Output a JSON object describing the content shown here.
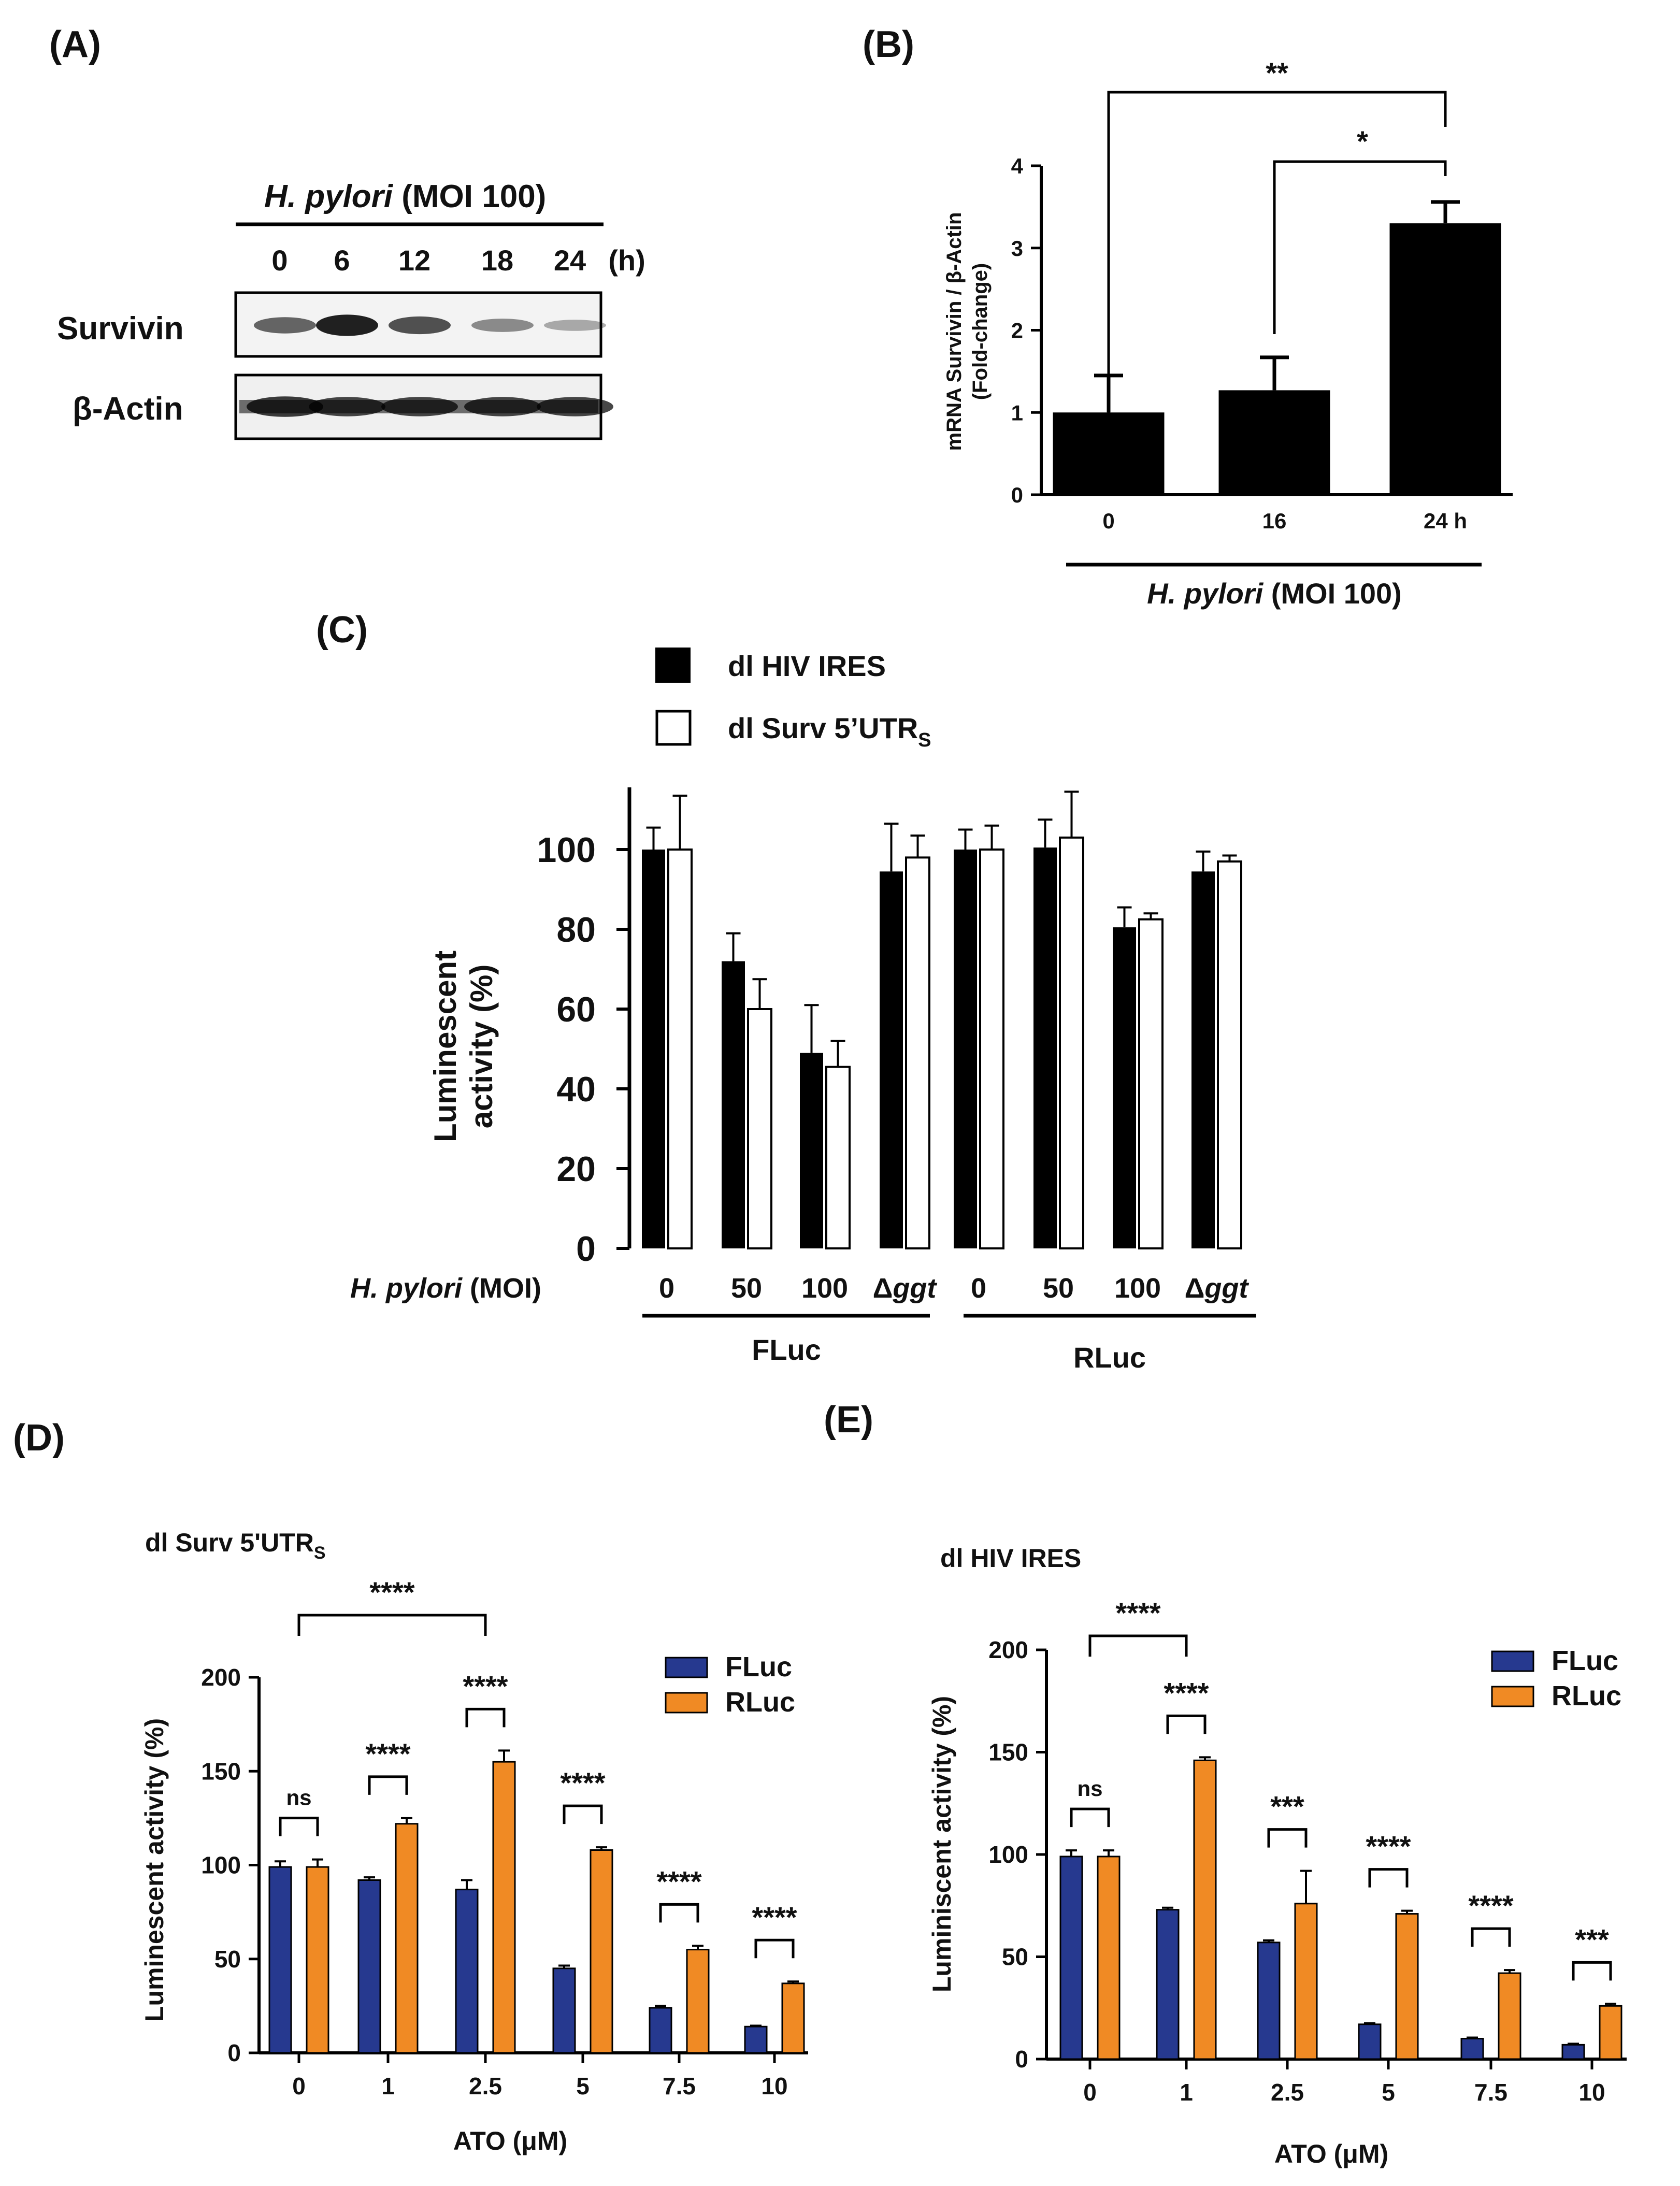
{
  "colors": {
    "black": "#000000",
    "white": "#ffffff",
    "fluc": "#26398f",
    "rluc": "#f08a24"
  },
  "panelA": {
    "label": "(A)",
    "header_italic": "H. pylori",
    "header_rest": " (MOI 100)",
    "lanes": [
      "0",
      "6",
      "12",
      "18",
      "24"
    ],
    "unit": "(h)",
    "rows": [
      "Survivin",
      "β-Actin"
    ],
    "survivin_intensity": [
      0.55,
      0.9,
      0.65,
      0.35,
      0.2
    ],
    "actin_intensity": [
      0.9,
      0.85,
      0.85,
      0.85,
      0.85
    ]
  },
  "chart_data": [
    {
      "panel": "(B)",
      "type": "bar",
      "categories": [
        "0",
        "16",
        "24 h"
      ],
      "values": [
        1.0,
        1.27,
        3.3
      ],
      "errors": [
        0.45,
        0.4,
        0.26
      ],
      "ylabel": "mRNA Survivin / β-Actin",
      "ylabel2": "(Fold-change)",
      "ylim": [
        0,
        4
      ],
      "yticks": [
        "0",
        "1",
        "2",
        "3",
        "4"
      ],
      "xlabel_italic": "H. pylori",
      "xlabel_rest": " (MOI 100)",
      "significance": [
        {
          "from": 0,
          "to": 2,
          "label": "**"
        },
        {
          "from": 1,
          "to": 2,
          "label": "*"
        }
      ]
    },
    {
      "panel": "(C)",
      "type": "bar",
      "groups": [
        "FLuc",
        "RLuc"
      ],
      "categories": [
        "0",
        "50",
        "100",
        "Δggt",
        "0",
        "50",
        "100",
        "Δggt"
      ],
      "legend": [
        "dl HIV IRES",
        "dl Surv 5’UTR",
        "S"
      ],
      "series": [
        {
          "name": "dl HIV IRES",
          "values": [
            100,
            72,
            49,
            94.5,
            100,
            100.5,
            80.5,
            94.5
          ],
          "errors": [
            5.5,
            7,
            12,
            12,
            5,
            7,
            5,
            5
          ]
        },
        {
          "name": "dl Surv 5’UTR_S",
          "values": [
            100,
            60,
            45.5,
            98,
            100,
            103,
            82.5,
            97
          ],
          "errors": [
            13.5,
            7.5,
            6.5,
            5.5,
            6,
            11.5,
            1.5,
            1.5
          ]
        }
      ],
      "ylabel": "Luminescent",
      "ylabel2": "activity (%)",
      "ylim": [
        0,
        115
      ],
      "yticks": [
        "0",
        "20",
        "40",
        "60",
        "80",
        "100"
      ],
      "xlabel_italic": "H. pylori",
      "xlabel_rest": " (MOI)",
      "delta": "Δ",
      "ggt": "ggt"
    },
    {
      "panel": "(D)",
      "type": "bar",
      "title": "dl Surv 5'UTR",
      "title_sub": "S",
      "categories": [
        "0",
        "1",
        "2.5",
        "5",
        "7.5",
        "10"
      ],
      "series": [
        {
          "name": "FLuc",
          "values": [
            99,
            92,
            87,
            45,
            24,
            14
          ],
          "errors": [
            3,
            1.5,
            5,
            1.5,
            1,
            0.5
          ]
        },
        {
          "name": "RLuc",
          "values": [
            99,
            122,
            155,
            108,
            55,
            37
          ],
          "errors": [
            4,
            3,
            6,
            1.5,
            2,
            1
          ]
        }
      ],
      "ylabel": "Luminescent activity (%)",
      "xlabel": "ATO (μM)",
      "ylim": [
        0,
        200
      ],
      "yticks": [
        "0",
        "50",
        "100",
        "150",
        "200"
      ],
      "bracket_labels": [
        "ns",
        "****",
        "****",
        "****",
        "****",
        "****"
      ],
      "top_bracket": "****"
    },
    {
      "panel": "(E)",
      "type": "bar",
      "title": "dl HIV IRES",
      "categories": [
        "0",
        "1",
        "2.5",
        "5",
        "7.5",
        "10"
      ],
      "series": [
        {
          "name": "FLuc",
          "values": [
            99,
            73,
            57,
            17,
            10,
            7
          ],
          "errors": [
            3,
            1,
            1,
            0.5,
            0.5,
            0.5
          ]
        },
        {
          "name": "RLuc",
          "values": [
            99,
            146,
            76,
            71,
            42,
            26
          ],
          "errors": [
            3,
            1.5,
            16,
            1.5,
            1.5,
            1
          ]
        }
      ],
      "ylabel": "Luminiscent activity (%)",
      "xlabel": "ATO (μM)",
      "ylim": [
        0,
        200
      ],
      "yticks": [
        "0",
        "50",
        "100",
        "150",
        "200"
      ],
      "bracket_labels": [
        "ns",
        "****",
        "***",
        "****",
        "****",
        "***"
      ],
      "top_bracket": "****"
    }
  ]
}
